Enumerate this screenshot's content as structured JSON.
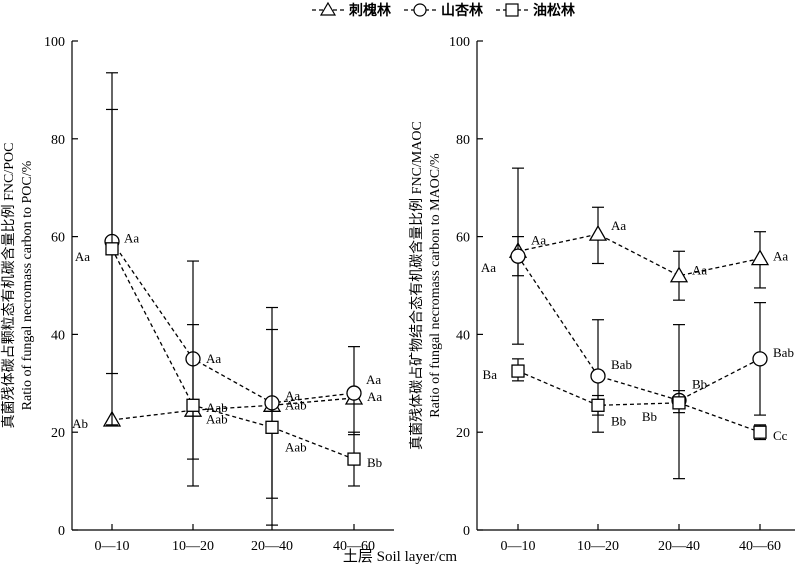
{
  "legend": {
    "items": [
      {
        "label": "刺槐林",
        "marker": "triangle"
      },
      {
        "label": "山杏林",
        "marker": "circle"
      },
      {
        "label": "油松林",
        "marker": "square"
      }
    ]
  },
  "x_axis_title": "土层  Soil layer/cm",
  "chart_data": [
    {
      "type": "line",
      "ylabel_cn": "真菌残体碳占颗粒态有机碳含量比例 FNC/POC",
      "ylabel_en": "Ratio of fungal necromass carbon to POC/%",
      "categories": [
        "0—10",
        "10—20",
        "20—40",
        "40—60"
      ],
      "ylim": [
        0,
        100
      ],
      "yticks": [
        "0",
        "20",
        "40",
        "60",
        "80",
        "100"
      ],
      "series": [
        {
          "name": "刺槐林",
          "marker": "triangle",
          "values": [
            22.5,
            24.5,
            25.5,
            27.0
          ],
          "err_low": [
            22.5,
            24.5,
            25.5,
            27.0
          ],
          "err_high": [
            22.5,
            24.5,
            25.5,
            27.0
          ],
          "labels": [
            "Ab",
            "Aab",
            "Aab",
            "Aa"
          ]
        },
        {
          "name": "山杏林",
          "marker": "circle",
          "values": [
            59.0,
            35.0,
            26.0,
            28.0
          ],
          "err_low": [
            32.0,
            14.5,
            6.5,
            19.5
          ],
          "err_high": [
            86.0,
            55.0,
            45.5,
            37.5
          ],
          "labels": [
            "Aa",
            "Aa",
            "Aa",
            "Aa"
          ]
        },
        {
          "name": "油松林",
          "marker": "square",
          "values": [
            57.5,
            25.5,
            21.0,
            14.5
          ],
          "err_low": [
            21.5,
            9.0,
            1.0,
            9.0
          ],
          "err_high": [
            93.5,
            42.0,
            41.0,
            20.0
          ],
          "labels": [
            "Aa",
            "Aab",
            "Aab",
            "Bb"
          ]
        }
      ]
    },
    {
      "type": "line",
      "ylabel_cn": "真菌残体碳占矿物结合态有机碳含量比例 FNC/MAOC",
      "ylabel_en": "Ratio of fungal necromass carbon to MAOC/%",
      "categories": [
        "0—10",
        "10—20",
        "20—40",
        "40—60"
      ],
      "ylim": [
        0,
        100
      ],
      "yticks": [
        "0",
        "20",
        "40",
        "60",
        "80",
        "100"
      ],
      "series": [
        {
          "name": "刺槐林",
          "marker": "triangle",
          "values": [
            57.0,
            60.5,
            52.0,
            55.5
          ],
          "err_low": [
            38.0,
            54.5,
            47.0,
            49.5
          ],
          "err_high": [
            74.0,
            66.0,
            57.0,
            61.0
          ],
          "labels": [
            "Aa",
            "Aa",
            "Aa",
            "Aa"
          ]
        },
        {
          "name": "山杏林",
          "marker": "circle",
          "values": [
            56.0,
            31.5,
            26.5,
            35.0
          ],
          "err_low": [
            52.0,
            20.0,
            10.5,
            23.5
          ],
          "err_high": [
            60.0,
            43.0,
            42.0,
            46.5
          ],
          "labels": [
            "Aa",
            "Bab",
            "Bb",
            "Bab"
          ]
        },
        {
          "name": "油松林",
          "marker": "square",
          "values": [
            32.5,
            25.5,
            26.0,
            20.0
          ],
          "err_low": [
            30.5,
            23.5,
            24.0,
            18.5
          ],
          "err_high": [
            35.0,
            27.5,
            28.5,
            21.5
          ],
          "labels": [
            "Ba",
            "Bb",
            "Bb",
            "Cc"
          ]
        }
      ]
    }
  ]
}
